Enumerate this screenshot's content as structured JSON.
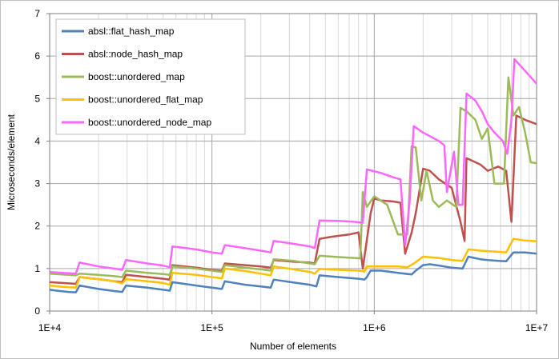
{
  "chart_data": {
    "type": "line",
    "title": "",
    "xlabel": "Number of elements",
    "ylabel": "Microseconds/element",
    "xscale": "log",
    "xlim": [
      10000,
      10000000
    ],
    "ylim": [
      0,
      7
    ],
    "yticks": [
      0,
      1,
      2,
      3,
      4,
      5,
      6,
      7
    ],
    "ytick_labels": [
      "0",
      "1",
      "2",
      "3",
      "4",
      "5",
      "6",
      "7"
    ],
    "xticks": [
      10000,
      100000,
      1000000,
      10000000
    ],
    "xtick_labels": [
      "1E+4",
      "1E+5",
      "1E+6",
      "1E+7"
    ],
    "grid": true,
    "legend_position": "top-left",
    "series": [
      {
        "name": "absl::flat_hash_map",
        "color": "#4f81bd",
        "points": [
          [
            10000,
            0.5
          ],
          [
            11000,
            0.48
          ],
          [
            13000,
            0.45
          ],
          [
            14500,
            0.44
          ],
          [
            15300,
            0.6
          ],
          [
            20000,
            0.52
          ],
          [
            25000,
            0.47
          ],
          [
            28000,
            0.45
          ],
          [
            29500,
            0.6
          ],
          [
            40000,
            0.55
          ],
          [
            50000,
            0.5
          ],
          [
            55000,
            0.48
          ],
          [
            57000,
            0.68
          ],
          [
            80000,
            0.6
          ],
          [
            100000,
            0.55
          ],
          [
            115000,
            0.52
          ],
          [
            120000,
            0.7
          ],
          [
            160000,
            0.62
          ],
          [
            200000,
            0.58
          ],
          [
            230000,
            0.55
          ],
          [
            240000,
            0.74
          ],
          [
            320000,
            0.67
          ],
          [
            400000,
            0.62
          ],
          [
            440000,
            0.58
          ],
          [
            460000,
            0.84
          ],
          [
            600000,
            0.8
          ],
          [
            800000,
            0.76
          ],
          [
            870000,
            0.74
          ],
          [
            900000,
            0.8
          ],
          [
            950000,
            0.95
          ],
          [
            1100000,
            0.95
          ],
          [
            1400000,
            0.9
          ],
          [
            1700000,
            0.86
          ],
          [
            1800000,
            0.95
          ],
          [
            2000000,
            1.08
          ],
          [
            2200000,
            1.1
          ],
          [
            2500000,
            1.07
          ],
          [
            3000000,
            1.02
          ],
          [
            3500000,
            1.0
          ],
          [
            3800000,
            1.28
          ],
          [
            4500000,
            1.22
          ],
          [
            5000000,
            1.2
          ],
          [
            5800000,
            1.18
          ],
          [
            6500000,
            1.17
          ],
          [
            7200000,
            1.38
          ],
          [
            8500000,
            1.38
          ],
          [
            10000000,
            1.35
          ]
        ]
      },
      {
        "name": "absl::node_hash_map",
        "color": "#c0504d",
        "points": [
          [
            10000,
            0.68
          ],
          [
            12000,
            0.66
          ],
          [
            14500,
            0.64
          ],
          [
            15300,
            0.8
          ],
          [
            20000,
            0.75
          ],
          [
            25000,
            0.7
          ],
          [
            28000,
            0.68
          ],
          [
            29500,
            0.85
          ],
          [
            40000,
            0.8
          ],
          [
            50000,
            0.76
          ],
          [
            55000,
            0.74
          ],
          [
            57000,
            1.08
          ],
          [
            80000,
            1.02
          ],
          [
            100000,
            0.97
          ],
          [
            115000,
            0.95
          ],
          [
            120000,
            1.12
          ],
          [
            160000,
            1.08
          ],
          [
            200000,
            1.05
          ],
          [
            230000,
            1.02
          ],
          [
            240000,
            1.2
          ],
          [
            320000,
            1.16
          ],
          [
            400000,
            1.14
          ],
          [
            430000,
            1.12
          ],
          [
            460000,
            1.7
          ],
          [
            550000,
            1.75
          ],
          [
            700000,
            1.8
          ],
          [
            800000,
            1.85
          ],
          [
            850000,
            1.0
          ],
          [
            950000,
            2.3
          ],
          [
            1000000,
            2.65
          ],
          [
            1100000,
            2.6
          ],
          [
            1300000,
            2.58
          ],
          [
            1450000,
            2.55
          ],
          [
            1550000,
            1.35
          ],
          [
            1700000,
            1.85
          ],
          [
            1800000,
            2.3
          ],
          [
            2000000,
            3.35
          ],
          [
            2200000,
            3.3
          ],
          [
            2500000,
            3.1
          ],
          [
            3000000,
            2.9
          ],
          [
            3400000,
            2.1
          ],
          [
            3600000,
            1.65
          ],
          [
            3700000,
            3.6
          ],
          [
            4500000,
            3.45
          ],
          [
            5000000,
            3.3
          ],
          [
            5800000,
            3.4
          ],
          [
            6500000,
            3.3
          ],
          [
            7000000,
            2.1
          ],
          [
            7500000,
            4.6
          ],
          [
            8500000,
            4.5
          ],
          [
            10000000,
            4.4
          ]
        ]
      },
      {
        "name": "boost::unordered_map",
        "color": "#9bbb59",
        "points": [
          [
            10000,
            0.88
          ],
          [
            12000,
            0.86
          ],
          [
            14500,
            0.84
          ],
          [
            15300,
            0.88
          ],
          [
            20000,
            0.85
          ],
          [
            25000,
            0.82
          ],
          [
            28000,
            0.8
          ],
          [
            29500,
            0.95
          ],
          [
            40000,
            0.9
          ],
          [
            50000,
            0.87
          ],
          [
            55000,
            0.85
          ],
          [
            57000,
            1.05
          ],
          [
            80000,
            1.0
          ],
          [
            100000,
            0.95
          ],
          [
            115000,
            0.92
          ],
          [
            120000,
            1.08
          ],
          [
            160000,
            1.02
          ],
          [
            200000,
            0.98
          ],
          [
            230000,
            0.95
          ],
          [
            240000,
            1.22
          ],
          [
            320000,
            1.18
          ],
          [
            400000,
            1.12
          ],
          [
            430000,
            1.1
          ],
          [
            460000,
            1.3
          ],
          [
            600000,
            1.27
          ],
          [
            750000,
            1.25
          ],
          [
            820000,
            1.24
          ],
          [
            850000,
            2.8
          ],
          [
            900000,
            2.45
          ],
          [
            1000000,
            2.7
          ],
          [
            1200000,
            2.5
          ],
          [
            1400000,
            1.8
          ],
          [
            1600000,
            1.8
          ],
          [
            1700000,
            3.88
          ],
          [
            1800000,
            3.85
          ],
          [
            1950000,
            2.6
          ],
          [
            2100000,
            3.3
          ],
          [
            2300000,
            2.6
          ],
          [
            2500000,
            2.45
          ],
          [
            2800000,
            2.6
          ],
          [
            3200000,
            2.45
          ],
          [
            3400000,
            4.78
          ],
          [
            3700000,
            4.7
          ],
          [
            4200000,
            4.5
          ],
          [
            4600000,
            4.05
          ],
          [
            5000000,
            4.3
          ],
          [
            5500000,
            3.0
          ],
          [
            6300000,
            3.0
          ],
          [
            6700000,
            5.5
          ],
          [
            7200000,
            4.6
          ],
          [
            7800000,
            4.8
          ],
          [
            8500000,
            4.2
          ],
          [
            9200000,
            3.5
          ],
          [
            10000000,
            3.48
          ]
        ]
      },
      {
        "name": "boost::unordered_flat_map",
        "color": "#ffc000",
        "points": [
          [
            10000,
            0.6
          ],
          [
            12000,
            0.57
          ],
          [
            14500,
            0.55
          ],
          [
            15300,
            0.8
          ],
          [
            20000,
            0.75
          ],
          [
            25000,
            0.7
          ],
          [
            28000,
            0.65
          ],
          [
            29500,
            0.75
          ],
          [
            40000,
            0.7
          ],
          [
            50000,
            0.66
          ],
          [
            55000,
            0.62
          ],
          [
            57000,
            0.9
          ],
          [
            80000,
            0.85
          ],
          [
            100000,
            0.8
          ],
          [
            115000,
            0.77
          ],
          [
            120000,
            1.0
          ],
          [
            160000,
            0.94
          ],
          [
            200000,
            0.88
          ],
          [
            230000,
            0.84
          ],
          [
            240000,
            1.05
          ],
          [
            320000,
            0.98
          ],
          [
            400000,
            0.92
          ],
          [
            430000,
            0.88
          ],
          [
            460000,
            0.99
          ],
          [
            600000,
            0.97
          ],
          [
            800000,
            0.95
          ],
          [
            870000,
            0.93
          ],
          [
            900000,
            1.05
          ],
          [
            1100000,
            1.05
          ],
          [
            1400000,
            1.05
          ],
          [
            1600000,
            1.03
          ],
          [
            1800000,
            1.15
          ],
          [
            2000000,
            1.28
          ],
          [
            2500000,
            1.25
          ],
          [
            3000000,
            1.2
          ],
          [
            3500000,
            1.18
          ],
          [
            3800000,
            1.45
          ],
          [
            4500000,
            1.42
          ],
          [
            5500000,
            1.4
          ],
          [
            6500000,
            1.38
          ],
          [
            7200000,
            1.7
          ],
          [
            8500000,
            1.66
          ],
          [
            10000000,
            1.64
          ]
        ]
      },
      {
        "name": "boost::unordered_node_map",
        "color": "#ff66ff",
        "points": [
          [
            10000,
            0.92
          ],
          [
            12000,
            0.9
          ],
          [
            14500,
            0.88
          ],
          [
            15300,
            1.14
          ],
          [
            20000,
            1.05
          ],
          [
            25000,
            1.0
          ],
          [
            28000,
            0.97
          ],
          [
            29500,
            1.2
          ],
          [
            40000,
            1.12
          ],
          [
            50000,
            1.07
          ],
          [
            55000,
            1.03
          ],
          [
            57000,
            1.52
          ],
          [
            80000,
            1.45
          ],
          [
            100000,
            1.38
          ],
          [
            115000,
            1.35
          ],
          [
            120000,
            1.55
          ],
          [
            160000,
            1.48
          ],
          [
            200000,
            1.42
          ],
          [
            230000,
            1.38
          ],
          [
            240000,
            1.65
          ],
          [
            320000,
            1.58
          ],
          [
            400000,
            1.52
          ],
          [
            430000,
            1.48
          ],
          [
            460000,
            2.13
          ],
          [
            600000,
            2.12
          ],
          [
            750000,
            2.1
          ],
          [
            850000,
            2.08
          ],
          [
            900000,
            3.33
          ],
          [
            1100000,
            3.25
          ],
          [
            1300000,
            3.15
          ],
          [
            1450000,
            3.1
          ],
          [
            1550000,
            1.55
          ],
          [
            1650000,
            2.55
          ],
          [
            1750000,
            4.35
          ],
          [
            2000000,
            4.2
          ],
          [
            2500000,
            4.0
          ],
          [
            2700000,
            3.9
          ],
          [
            2800000,
            2.8
          ],
          [
            3100000,
            3.75
          ],
          [
            3300000,
            2.5
          ],
          [
            3500000,
            2.5
          ],
          [
            3700000,
            5.12
          ],
          [
            4200000,
            4.95
          ],
          [
            4600000,
            4.7
          ],
          [
            5000000,
            4.4
          ],
          [
            5500000,
            4.2
          ],
          [
            6200000,
            4.0
          ],
          [
            6600000,
            3.7
          ],
          [
            7000000,
            4.5
          ],
          [
            7300000,
            5.93
          ],
          [
            8500000,
            5.65
          ],
          [
            10000000,
            5.35
          ]
        ]
      }
    ]
  }
}
